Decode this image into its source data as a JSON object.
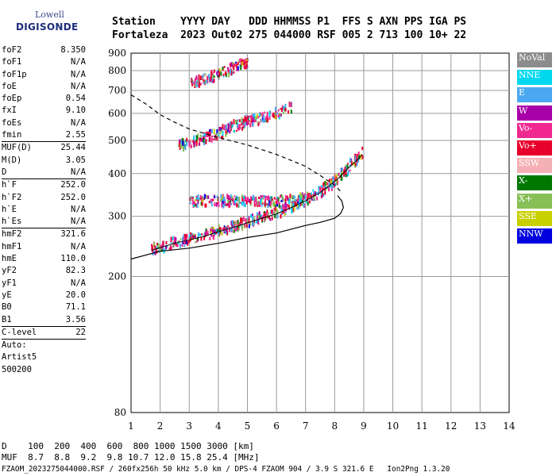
{
  "logo": {
    "line1": "Lowell",
    "line2": "DIGISONDE"
  },
  "header": {
    "row1": "Station    YYYY DAY   DDD HHMMSS P1  FFS S AXN PPS IGA PS",
    "row2": "Fortaleza  2023 Out02 275 044000 RSF 005 2 713 100 10+ 22"
  },
  "params": [
    {
      "label": "foF2",
      "value": "8.350"
    },
    {
      "label": "foF1",
      "value": "N/A"
    },
    {
      "label": "foF1p",
      "value": "N/A"
    },
    {
      "label": "foE",
      "value": "N/A"
    },
    {
      "label": "foEp",
      "value": "0.54"
    },
    {
      "label": "fxI",
      "value": "9.10"
    },
    {
      "label": "foEs",
      "value": "N/A"
    },
    {
      "label": "fmin",
      "value": "2.55"
    },
    {
      "label": "MUF(D)",
      "value": "25.44",
      "sep": true
    },
    {
      "label": "M(D)",
      "value": "3.05"
    },
    {
      "label": "D",
      "value": "N/A"
    },
    {
      "label": "h`F",
      "value": "252.0",
      "sep": true
    },
    {
      "label": "h`F2",
      "value": "252.0"
    },
    {
      "label": "h`E",
      "value": "N/A"
    },
    {
      "label": "h`Es",
      "value": "N/A"
    },
    {
      "label": "hmF2",
      "value": "321.6",
      "sep": true
    },
    {
      "label": "hmF1",
      "value": "N/A"
    },
    {
      "label": "hmE",
      "value": "110.0"
    },
    {
      "label": "yF2",
      "value": "82.3"
    },
    {
      "label": "yF1",
      "value": "N/A"
    },
    {
      "label": "yE",
      "value": "20.0"
    },
    {
      "label": "B0",
      "value": "71.1"
    },
    {
      "label": "B1",
      "value": "3.56"
    },
    {
      "label": "C-level",
      "value": "22",
      "sep": true
    },
    {
      "label": "Auto:",
      "value": "",
      "sep": true
    },
    {
      "label": "Artist5",
      "value": ""
    },
    {
      "label": "500200",
      "value": ""
    }
  ],
  "legend": [
    {
      "label": "NoVal",
      "color": "#8c8c8c"
    },
    {
      "label": "NNE",
      "color": "#00d8f0"
    },
    {
      "label": "E",
      "color": "#4aa8f0"
    },
    {
      "label": "W",
      "color": "#a800a8"
    },
    {
      "label": "Vo-",
      "color": "#f02890"
    },
    {
      "label": "Vo+",
      "color": "#e8002c"
    },
    {
      "label": "SSW",
      "color": "#f4b0b4"
    },
    {
      "label": "X-",
      "color": "#007800"
    },
    {
      "label": "X+",
      "color": "#88c058"
    },
    {
      "label": "SSE",
      "color": "#c8d000"
    },
    {
      "label": "NNW",
      "color": "#0000e0"
    }
  ],
  "bottom": {
    "line1": "D    100  200  400  600  800 1000 1500 3000 [km]",
    "line2": "MUF  8.7  8.8  9.2  9.8 10.7 12.0 15.8 25.4 [MHz]",
    "line3": "FZAOM_2023275044000.RSF / 260fx256h 50 kHz 5.0 km / DPS-4 FZAOM 904 / 3.9 S 321.6 E   Ion2Png 1.3.20"
  },
  "chart_data": {
    "type": "scatter",
    "title": "",
    "xlabel": "",
    "ylabel": "",
    "xlim": [
      1,
      14
    ],
    "ylim": [
      80,
      900
    ],
    "xticks": [
      1,
      2,
      3,
      4,
      5,
      6,
      7,
      8,
      9,
      10,
      11,
      12,
      13,
      14
    ],
    "yticks": [
      80,
      200,
      300,
      400,
      500,
      600,
      700,
      800,
      900
    ],
    "grid": true,
    "y_scale": "log",
    "traces": [
      {
        "name": "first-hop",
        "points": [
          [
            1.7,
            238
          ],
          [
            2.0,
            243
          ],
          [
            2.5,
            250
          ],
          [
            3.0,
            256
          ],
          [
            3.5,
            262
          ],
          [
            4.0,
            270
          ],
          [
            4.5,
            278
          ],
          [
            5.0,
            287
          ],
          [
            5.5,
            296
          ],
          [
            6.0,
            305
          ],
          [
            6.5,
            318
          ],
          [
            7.0,
            333
          ],
          [
            7.5,
            352
          ],
          [
            7.8,
            368
          ],
          [
            8.1,
            385
          ],
          [
            8.35,
            405
          ],
          [
            8.6,
            425
          ],
          [
            8.8,
            440
          ],
          [
            8.95,
            455
          ]
        ]
      },
      {
        "name": "spread-upper",
        "points": [
          [
            3.0,
            330
          ],
          [
            4.0,
            330
          ],
          [
            5.0,
            330
          ],
          [
            6.0,
            330
          ],
          [
            7.0,
            334
          ]
        ]
      },
      {
        "name": "second-hop",
        "points": [
          [
            2.6,
            477
          ],
          [
            3.0,
            490
          ],
          [
            3.5,
            503
          ],
          [
            4.0,
            520
          ],
          [
            4.5,
            545
          ],
          [
            5.0,
            565
          ],
          [
            5.5,
            580
          ],
          [
            6.0,
            595
          ],
          [
            6.5,
            620
          ]
        ]
      },
      {
        "name": "third-hop",
        "points": [
          [
            3.0,
            725
          ],
          [
            3.5,
            750
          ],
          [
            4.0,
            775
          ],
          [
            4.5,
            810
          ],
          [
            5.0,
            840
          ]
        ]
      }
    ],
    "profile": {
      "name": "electron-density-profile",
      "points": [
        [
          1.0,
          225
        ],
        [
          2.0,
          237
        ],
        [
          3.0,
          242
        ],
        [
          4.0,
          250
        ],
        [
          5.0,
          260
        ],
        [
          6.0,
          268
        ],
        [
          7.0,
          282
        ],
        [
          7.5,
          288
        ],
        [
          8.0,
          296
        ],
        [
          8.2,
          305
        ],
        [
          8.3,
          318
        ],
        [
          8.25,
          332
        ],
        [
          8.1,
          345
        ]
      ]
    },
    "muf_curve": {
      "name": "muf-curve",
      "points": [
        [
          1.0,
          680
        ],
        [
          1.5,
          640
        ],
        [
          2.0,
          595
        ],
        [
          2.5,
          565
        ],
        [
          3.0,
          540
        ],
        [
          4.0,
          510
        ],
        [
          5.0,
          485
        ],
        [
          6.0,
          455
        ],
        [
          7.0,
          420
        ],
        [
          7.5,
          395
        ],
        [
          8.0,
          370
        ],
        [
          8.2,
          355
        ]
      ]
    }
  }
}
